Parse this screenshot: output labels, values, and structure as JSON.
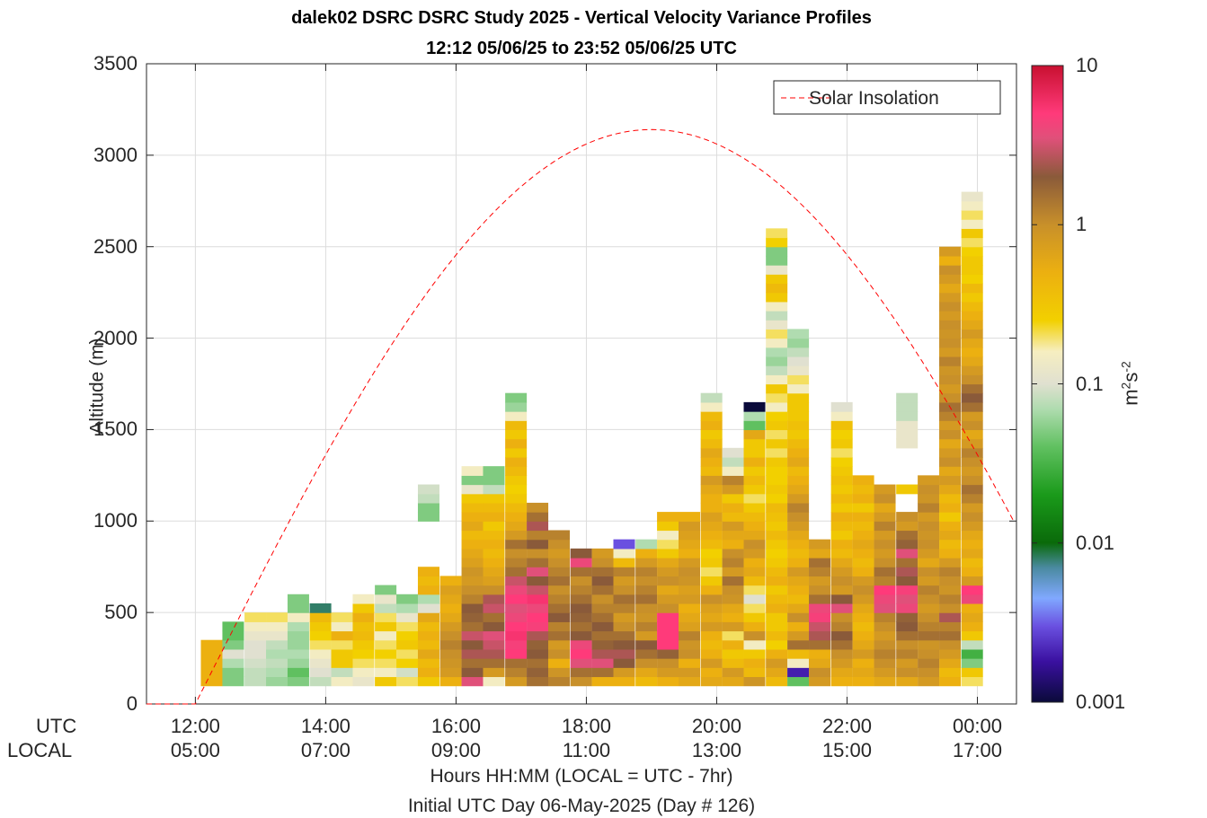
{
  "chart_data": {
    "type": "heatmap",
    "title": "dalek02 DSRC DSRC Study 2025 - Vertical Velocity Variance Profiles",
    "subtitle": "12:12 05/06/25 to 23:52 05/06/25  UTC",
    "ylabel": "Altitude (m)",
    "xlabel": "Hours HH:MM  (LOCAL = UTC - 7hr)",
    "xlabel2": "Initial UTC Day 06-May-2025 (Day # 126)",
    "ylim": [
      0,
      3500
    ],
    "y_ticks": [
      "0",
      "500",
      "1000",
      "1500",
      "2000",
      "2500",
      "3000",
      "3500"
    ],
    "x_row_labels": {
      "utc": "UTC",
      "local": "LOCAL"
    },
    "x_ticks_utc": [
      "12:00",
      "14:00",
      "16:00",
      "18:00",
      "20:00",
      "22:00",
      "00:00"
    ],
    "x_ticks_local": [
      "05:00",
      "07:00",
      "09:00",
      "11:00",
      "13:00",
      "15:00",
      "17:00"
    ],
    "xlim_hours_utc": [
      11.25,
      24.6
    ],
    "grid": true,
    "legend": {
      "position": "top-right",
      "entries": [
        "Solar Insolation"
      ]
    },
    "colorbar": {
      "label": "m2s-2",
      "scale": "log",
      "range": [
        0.001,
        10
      ],
      "tick_labels": [
        "10",
        "1",
        "0.1",
        "0.01",
        "0.001"
      ],
      "stops": [
        {
          "v": 0.001,
          "c": "#0a0a3a"
        },
        {
          "v": 0.0018,
          "c": "#3a10a0"
        },
        {
          "v": 0.003,
          "c": "#6a50e0"
        },
        {
          "v": 0.0045,
          "c": "#80a8ff"
        },
        {
          "v": 0.007,
          "c": "#4a8aa0"
        },
        {
          "v": 0.01,
          "c": "#0a6a0a"
        },
        {
          "v": 0.02,
          "c": "#1a9a1a"
        },
        {
          "v": 0.04,
          "c": "#60c060"
        },
        {
          "v": 0.07,
          "c": "#b0dcb0"
        },
        {
          "v": 0.1,
          "c": "#e0e0d0"
        },
        {
          "v": 0.16,
          "c": "#f6eec0"
        },
        {
          "v": 0.25,
          "c": "#f2d000"
        },
        {
          "v": 0.5,
          "c": "#ecb010"
        },
        {
          "v": 1.0,
          "c": "#c8902a"
        },
        {
          "v": 2.0,
          "c": "#8a5a3a"
        },
        {
          "v": 3.5,
          "c": "#e0507a"
        },
        {
          "v": 5.0,
          "c": "#ff3a7a"
        },
        {
          "v": 10,
          "c": "#c81030"
        }
      ]
    },
    "solar_insolation": {
      "name": "Solar Insolation",
      "sunrise_hour_utc": 12.0,
      "peak_hour_utc": 19.0,
      "peak_altitude_equiv": 3140,
      "color": "#ff0000"
    },
    "cell_height_m": 50,
    "profiles": [
      {
        "t": 12.25,
        "base": 100,
        "v": [
          0.5,
          0.5,
          0.5,
          0.5,
          0.5
        ]
      },
      {
        "t": 12.58,
        "base": 100,
        "v": [
          0.05,
          0.05,
          0.07,
          0.1,
          0.05,
          0.04,
          0.04
        ]
      },
      {
        "t": 12.92,
        "base": 100,
        "v": [
          0.08,
          0.08,
          0.09,
          0.1,
          0.1,
          0.12,
          0.15,
          0.2
        ]
      },
      {
        "t": 13.25,
        "base": 100,
        "v": [
          0.06,
          0.07,
          0.08,
          0.07,
          0.08,
          0.12,
          0.15,
          0.2
        ]
      },
      {
        "t": 13.58,
        "base": 100,
        "v": [
          0.05,
          0.04,
          0.06,
          0.07,
          0.06,
          0.06,
          0.07,
          0.15,
          0.05,
          0.05
        ]
      },
      {
        "t": 13.92,
        "base": 100,
        "v": [
          0.08,
          0.1,
          0.12,
          0.15,
          0.2,
          0.25,
          0.3,
          0.4,
          0.008
        ]
      },
      {
        "t": 14.25,
        "base": 100,
        "v": [
          0.15,
          0.08,
          0.3,
          0.3,
          0.2,
          0.5,
          0.15,
          0.2
        ]
      },
      {
        "t": 14.58,
        "base": 100,
        "v": [
          0.12,
          0.15,
          0.2,
          0.25,
          0.3,
          0.4,
          0.35,
          0.5,
          0.3,
          0.15
        ]
      },
      {
        "t": 14.92,
        "base": 100,
        "v": [
          0.3,
          0.15,
          0.2,
          0.25,
          0.2,
          0.15,
          0.3,
          0.2,
          0.08,
          0.12,
          0.05
        ]
      },
      {
        "t": 15.25,
        "base": 100,
        "v": [
          0.2,
          0.09,
          0.25,
          0.2,
          0.3,
          0.25,
          0.2,
          0.12,
          0.07,
          0.05
        ]
      },
      {
        "t": 15.58,
        "base": 100,
        "v": [
          0.3,
          0.5,
          0.4,
          0.6,
          0.4,
          0.5,
          0.4,
          0.6,
          0.1,
          0.07,
          0.5,
          0.4,
          0.5
        ],
        "extra": [
          {
            "base": 1000,
            "v": [
              0.05,
              0.05,
              0.08,
              0.09
            ]
          }
        ]
      },
      {
        "t": 15.92,
        "base": 100,
        "v": [
          0.5,
          0.8,
          0.9,
          1.0,
          1.2,
          1.0,
          0.8,
          0.6,
          0.5,
          0.6,
          0.7,
          0.5
        ]
      },
      {
        "t": 16.25,
        "base": 100,
        "v": [
          3.5,
          2.0,
          1.5,
          2.5,
          2.0,
          3.0,
          1.5,
          1.8,
          2.0,
          1.2,
          1.0,
          0.8,
          0.9,
          0.7,
          0.6,
          0.5,
          0.4,
          0.6,
          0.5,
          0.4,
          0.3,
          0.12,
          0.05,
          0.15
        ]
      },
      {
        "t": 16.58,
        "base": 100,
        "v": [
          0.15,
          0.8,
          1.5,
          2.5,
          3.0,
          3.5,
          2.0,
          1.5,
          3.0,
          2.5,
          1.0,
          0.7,
          0.6,
          0.5,
          0.4,
          0.5,
          0.4,
          0.3,
          0.5,
          0.4,
          0.3,
          0.08,
          0.05,
          0.05
        ]
      },
      {
        "t": 16.92,
        "base": 100,
        "v": [
          0.8,
          1.2,
          1.5,
          5.0,
          4.5,
          5.5,
          5.0,
          4.0,
          3.5,
          5.0,
          4.0,
          3.0,
          1.5,
          1.2,
          1.0,
          1.5,
          0.8,
          0.6,
          0.5,
          0.4,
          0.3,
          0.25,
          0.3,
          0.4,
          0.5,
          0.3,
          0.5,
          0.3,
          0.4,
          0.15,
          0.06,
          0.05
        ]
      },
      {
        "t": 17.25,
        "base": 100,
        "v": [
          1.5,
          1.8,
          1.5,
          2.0,
          1.8,
          2.5,
          4.5,
          5.0,
          4.0,
          5.5,
          3.0,
          2.0,
          3.5,
          1.5,
          1.0,
          2.0,
          1.2,
          2.5,
          1.5,
          1.0
        ]
      },
      {
        "t": 17.58,
        "base": 100,
        "v": [
          1.2,
          0.9,
          0.5,
          1.0,
          0.8,
          1.5,
          1.2,
          2.0,
          1.5,
          1.2,
          1.0,
          1.5,
          1.2,
          1.0,
          0.8,
          1.0,
          1.2
        ]
      },
      {
        "t": 17.92,
        "base": 100,
        "v": [
          1.0,
          1.5,
          3.5,
          5.0,
          4.0,
          2.0,
          1.5,
          1.8,
          2.0,
          1.5,
          1.2,
          1.0,
          1.5,
          4.0,
          2.0
        ]
      },
      {
        "t": 18.25,
        "base": 100,
        "v": [
          0.5,
          1.5,
          3.5,
          2.5,
          1.8,
          1.5,
          2.0,
          1.5,
          1.2,
          1.0,
          1.5,
          2.0,
          1.5,
          1.0,
          0.8
        ]
      },
      {
        "t": 18.58,
        "base": 100,
        "v": [
          0.5,
          0.8,
          2.0,
          2.5,
          2.0,
          1.5,
          1.0,
          0.8,
          1.2,
          1.5,
          1.0,
          0.8,
          1.2,
          0.4,
          0.15,
          0.003
        ]
      },
      {
        "t": 18.92,
        "base": 100,
        "v": [
          0.4,
          0.6,
          1.0,
          1.5,
          2.0,
          0.8,
          1.2,
          0.9,
          1.0,
          1.5,
          1.2,
          1.0,
          1.2,
          0.8,
          0.5,
          0.07
        ]
      },
      {
        "t": 19.25,
        "base": 100,
        "v": [
          0.5,
          0.8,
          1.0,
          1.8,
          5.0,
          5.0,
          5.0,
          5.0,
          1.0,
          0.8,
          0.6,
          1.0,
          0.8,
          0.6,
          0.3,
          0.2,
          0.15,
          0.3,
          0.5
        ]
      },
      {
        "t": 19.58,
        "base": 100,
        "v": [
          0.6,
          0.8,
          0.5,
          1.0,
          0.9,
          1.2,
          0.7,
          0.6,
          0.5,
          0.8,
          0.7,
          0.9,
          1.0,
          0.8,
          0.5,
          0.6,
          0.7,
          0.8,
          0.5
        ]
      },
      {
        "t": 19.92,
        "base": 100,
        "v": [
          0.6,
          0.5,
          0.8,
          0.5,
          0.4,
          0.5,
          0.8,
          0.6,
          0.7,
          1.0,
          0.5,
          0.3,
          0.2,
          0.3,
          0.25,
          0.4,
          0.5,
          0.6,
          0.7,
          0.5,
          0.5,
          0.6,
          0.8,
          0.4,
          0.5,
          0.6,
          0.4,
          0.3,
          0.5,
          0.4,
          0.15,
          0.08
        ]
      },
      {
        "t": 20.25,
        "base": 100,
        "v": [
          0.6,
          0.8,
          0.4,
          0.3,
          0.5,
          0.2,
          0.8,
          0.5,
          0.6,
          0.9,
          1.0,
          1.5,
          0.8,
          1.2,
          1.0,
          0.5,
          0.6,
          0.8,
          0.4,
          0.5,
          0.3,
          0.8,
          1.2,
          0.15,
          0.08,
          0.1
        ]
      },
      {
        "t": 20.58,
        "base": 100,
        "v": [
          0.9,
          0.4,
          0.5,
          0.3,
          0.15,
          1.0,
          0.5,
          0.3,
          0.2,
          0.1,
          0.2,
          0.4,
          0.6,
          0.5,
          0.8,
          1.0,
          0.6,
          0.5,
          0.4,
          0.3,
          0.2,
          0.3,
          0.4,
          0.3,
          0.5,
          0.3,
          0.3,
          0.6,
          0.04,
          0.07,
          0.001
        ]
      },
      {
        "t": 20.92,
        "base": 100,
        "v": [
          0.4,
          0.6,
          0.8,
          0.5,
          0.25,
          0.4,
          0.3,
          0.3,
          0.5,
          0.4,
          0.3,
          0.5,
          0.4,
          0.3,
          0.25,
          0.3,
          0.4,
          0.3,
          0.35,
          0.4,
          0.25,
          0.3,
          0.25,
          0.25,
          0.3,
          0.2,
          0.3,
          0.2,
          0.3,
          0.25,
          0.15,
          0.2,
          0.3,
          0.15,
          0.08,
          0.06,
          0.07,
          0.15,
          0.2,
          0.12,
          0.08,
          0.15,
          0.3,
          0.4,
          0.3,
          0.12,
          0.05,
          0.05,
          0.25,
          0.2
        ]
      },
      {
        "t": 21.25,
        "base": 100,
        "v": [
          0.04,
          0.002,
          0.15,
          0.4,
          1.5,
          0.8,
          0.5,
          1.0,
          0.6,
          0.4,
          0.5,
          0.6,
          0.8,
          0.5,
          0.4,
          0.5,
          0.6,
          0.8,
          1.0,
          1.2,
          0.8,
          0.6,
          0.5,
          0.4,
          0.6,
          0.5,
          0.4,
          0.3,
          0.35,
          0.3,
          0.3,
          0.3,
          0.15,
          0.2,
          0.12,
          0.1,
          0.08,
          0.06,
          0.07
        ]
      },
      {
        "t": 21.58,
        "base": 100,
        "v": [
          0.8,
          1.0,
          0.6,
          0.5,
          1.5,
          2.5,
          3.0,
          4.5,
          4.0,
          1.5,
          1.0,
          0.8,
          1.2,
          1.5,
          0.6,
          0.8
        ]
      },
      {
        "t": 21.92,
        "base": 100,
        "v": [
          0.5,
          0.6,
          0.8,
          1.0,
          1.5,
          2.0,
          1.2,
          1.0,
          3.5,
          2.0,
          0.8,
          1.0,
          0.8,
          0.6,
          0.4,
          0.5,
          0.3,
          0.4,
          0.5,
          0.3,
          0.4,
          0.3,
          0.35,
          0.3,
          0.25,
          0.2,
          0.3,
          0.25,
          0.35,
          0.15,
          0.1
        ]
      },
      {
        "t": 22.25,
        "base": 100,
        "v": [
          0.5,
          0.6,
          0.5,
          0.8,
          0.6,
          0.5,
          0.4,
          0.5,
          0.6,
          0.8,
          1.0,
          0.8,
          0.5,
          0.4,
          0.5,
          0.6,
          0.5,
          0.4,
          0.5,
          0.3,
          0.5,
          0.4,
          0.5
        ]
      },
      {
        "t": 22.58,
        "base": 100,
        "v": [
          0.6,
          0.8,
          1.0,
          1.2,
          1.0,
          0.8,
          1.0,
          1.2,
          3.5,
          4.0,
          5.0,
          1.2,
          1.5,
          1.0,
          0.8,
          1.0,
          0.8,
          1.2,
          0.8,
          0.6,
          1.0,
          0.8
        ]
      },
      {
        "t": 22.92,
        "base": 100,
        "v": [
          0.6,
          1.0,
          0.8,
          1.2,
          1.0,
          1.5,
          2.0,
          1.8,
          4.0,
          3.5,
          4.5,
          2.0,
          2.5,
          1.5,
          3.5,
          1.8,
          1.5,
          0.8,
          1.0,
          1.2,
          0.6,
          0.3,
          0.5,
          0.25,
          0.2,
          0.2,
          0.12,
          0.12,
          0.12,
          0.08,
          0.08,
          0.08
        ],
        "mask": [
          19,
          20,
          22,
          23,
          24,
          25
        ]
      },
      {
        "t": 23.25,
        "base": 100,
        "v": [
          0.8,
          1.0,
          1.2,
          1.0,
          0.9,
          1.5,
          1.2,
          1.0,
          0.8,
          1.0,
          1.2,
          0.8,
          1.0,
          0.6,
          0.8,
          1.0,
          0.9,
          1.0,
          0.8,
          1.2,
          0.9,
          1.0,
          0.8
        ]
      },
      {
        "t": 23.58,
        "base": 100,
        "v": [
          0.5,
          0.4,
          0.6,
          0.8,
          1.0,
          1.5,
          1.2,
          2.5,
          1.0,
          1.2,
          0.9,
          1.0,
          1.2,
          0.8,
          0.5,
          0.4,
          0.6,
          0.5,
          0.3,
          0.5,
          0.4,
          0.6,
          0.8,
          0.6,
          1.0,
          0.8,
          0.6,
          1.0,
          0.8,
          1.2,
          1.5,
          1.0,
          0.8,
          1.0,
          0.9,
          1.2,
          0.8,
          1.0,
          0.9,
          1.0,
          0.8,
          1.0,
          0.8,
          0.6,
          0.8,
          1.0,
          0.5,
          0.8
        ]
      },
      {
        "t": 23.92,
        "base": 100,
        "v": [
          0.2,
          0.3,
          0.05,
          0.03,
          0.08,
          0.3,
          0.5,
          0.6,
          0.5,
          4.0,
          5.0,
          0.8,
          0.5,
          0.4,
          0.6,
          0.5,
          0.6,
          0.8,
          1.0,
          0.8,
          1.2,
          1.5,
          1.0,
          0.8,
          1.0,
          1.2,
          0.8,
          0.6,
          1.0,
          0.8,
          1.5,
          2.0,
          1.5,
          1.0,
          0.8,
          0.6,
          0.5,
          0.6,
          0.8,
          0.6,
          0.5,
          0.4,
          0.3,
          0.4,
          0.25,
          0.3,
          0.3,
          0.25,
          0.2,
          0.3,
          0.15,
          0.2,
          0.15,
          0.12
        ]
      }
    ]
  }
}
